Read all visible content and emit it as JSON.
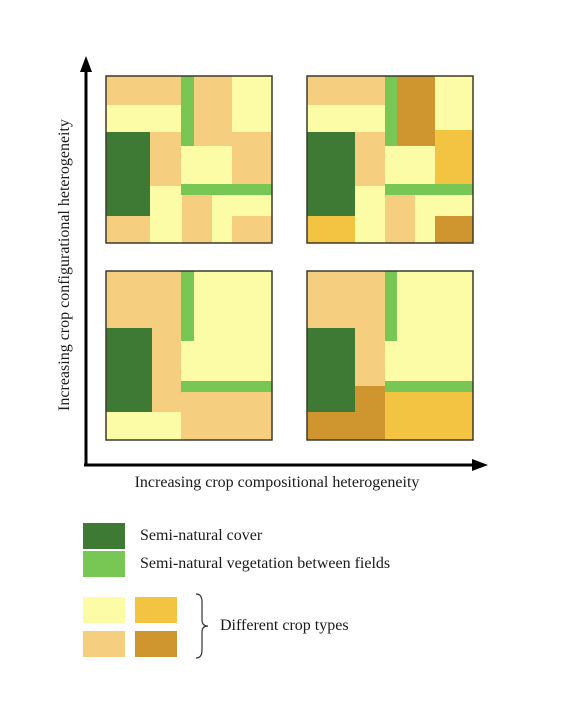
{
  "axes": {
    "y_label": "Increasing crop configurational heterogeneity",
    "x_label": "Increasing crop compositional heterogeneity"
  },
  "colors": {
    "semi_natural_cover": "#3e7a34",
    "vegetation_strip": "#78c653",
    "crop_1": "#fdfca6",
    "crop_2": "#f6ce7f",
    "crop_3": "#f3c442",
    "crop_4": "#cf9630",
    "outline": "#3c3a2a"
  },
  "legend": {
    "semi_natural_cover": "Semi-natural cover",
    "vegetation_between_fields": "Semi-natural vegetation between fields",
    "crop_types": "Different crop types"
  }
}
